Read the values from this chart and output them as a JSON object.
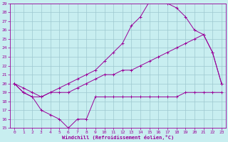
{
  "xlabel": "Windchill (Refroidissement éolien,°C)",
  "xlim": [
    -0.5,
    23.5
  ],
  "ylim": [
    15,
    29
  ],
  "xticks": [
    0,
    1,
    2,
    3,
    4,
    5,
    6,
    7,
    8,
    9,
    10,
    11,
    12,
    13,
    14,
    15,
    16,
    17,
    18,
    19,
    20,
    21,
    22,
    23
  ],
  "yticks": [
    15,
    16,
    17,
    18,
    19,
    20,
    21,
    22,
    23,
    24,
    25,
    26,
    27,
    28,
    29
  ],
  "bg_color": "#c8eef0",
  "grid_color": "#9ec8d0",
  "line_color": "#990099",
  "lines": [
    {
      "x": [
        0,
        1,
        2,
        3,
        4,
        5,
        6,
        7,
        8,
        9,
        10,
        11,
        12,
        13,
        14,
        15,
        16,
        17,
        18,
        19,
        20,
        21,
        22,
        23
      ],
      "y": [
        20,
        19,
        18.5,
        17,
        16.5,
        16,
        15,
        16,
        16,
        18.5,
        18.5,
        18.5,
        18.5,
        18.5,
        18.5,
        18.5,
        18.5,
        18.5,
        18.5,
        19,
        19,
        19,
        19,
        19
      ]
    },
    {
      "x": [
        0,
        1,
        2,
        3,
        4,
        5,
        6,
        7,
        8,
        9,
        10,
        11,
        12,
        13,
        14,
        15,
        16,
        17,
        18,
        19,
        20,
        21,
        22,
        23
      ],
      "y": [
        20,
        19,
        18.5,
        18.5,
        19,
        19,
        19,
        19.5,
        20,
        20.5,
        21,
        21,
        21.5,
        21.5,
        22,
        22.5,
        23,
        23.5,
        24,
        24.5,
        25,
        25.5,
        23.5,
        20
      ]
    },
    {
      "x": [
        0,
        1,
        2,
        3,
        4,
        5,
        6,
        7,
        8,
        9,
        10,
        11,
        12,
        13,
        14,
        15,
        16,
        17,
        18,
        19,
        20,
        21,
        22,
        23
      ],
      "y": [
        20,
        19.5,
        19,
        18.5,
        19,
        19.5,
        20,
        20.5,
        21,
        21.5,
        22.5,
        23.5,
        24.5,
        26.5,
        27.5,
        29.2,
        29.5,
        29,
        28.5,
        27.5,
        26,
        25.5,
        23.5,
        20
      ]
    }
  ]
}
